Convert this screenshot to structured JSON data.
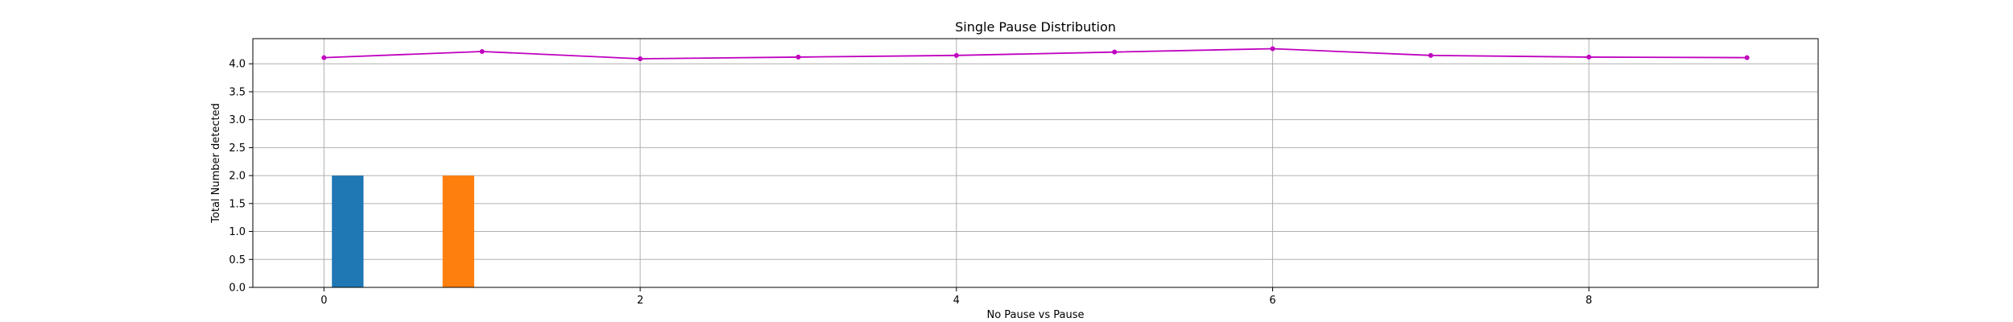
{
  "chart_data": {
    "type": "bar",
    "title": "Single Pause Distribution",
    "xlabel": "No Pause vs Pause",
    "ylabel": "Total Number detected",
    "xlim": [
      -0.45,
      9.45
    ],
    "ylim": [
      0,
      4.45
    ],
    "xticks": [
      0,
      2,
      4,
      6,
      8
    ],
    "yticks": [
      0.0,
      0.5,
      1.0,
      1.5,
      2.0,
      2.5,
      3.0,
      3.5,
      4.0
    ],
    "grid": true,
    "bars": [
      {
        "x": 0.15,
        "value": 2.0,
        "color": "#1f77b4"
      },
      {
        "x": 0.85,
        "value": 2.0,
        "color": "#ff7f0e"
      }
    ],
    "bar_width": 0.2,
    "line": {
      "color": "#bf00bf",
      "x": [
        0,
        1,
        2,
        3,
        4,
        5,
        6,
        7,
        8,
        9
      ],
      "y": [
        4.11,
        4.22,
        4.09,
        4.12,
        4.15,
        4.21,
        4.27,
        4.15,
        4.12,
        4.11
      ]
    }
  }
}
